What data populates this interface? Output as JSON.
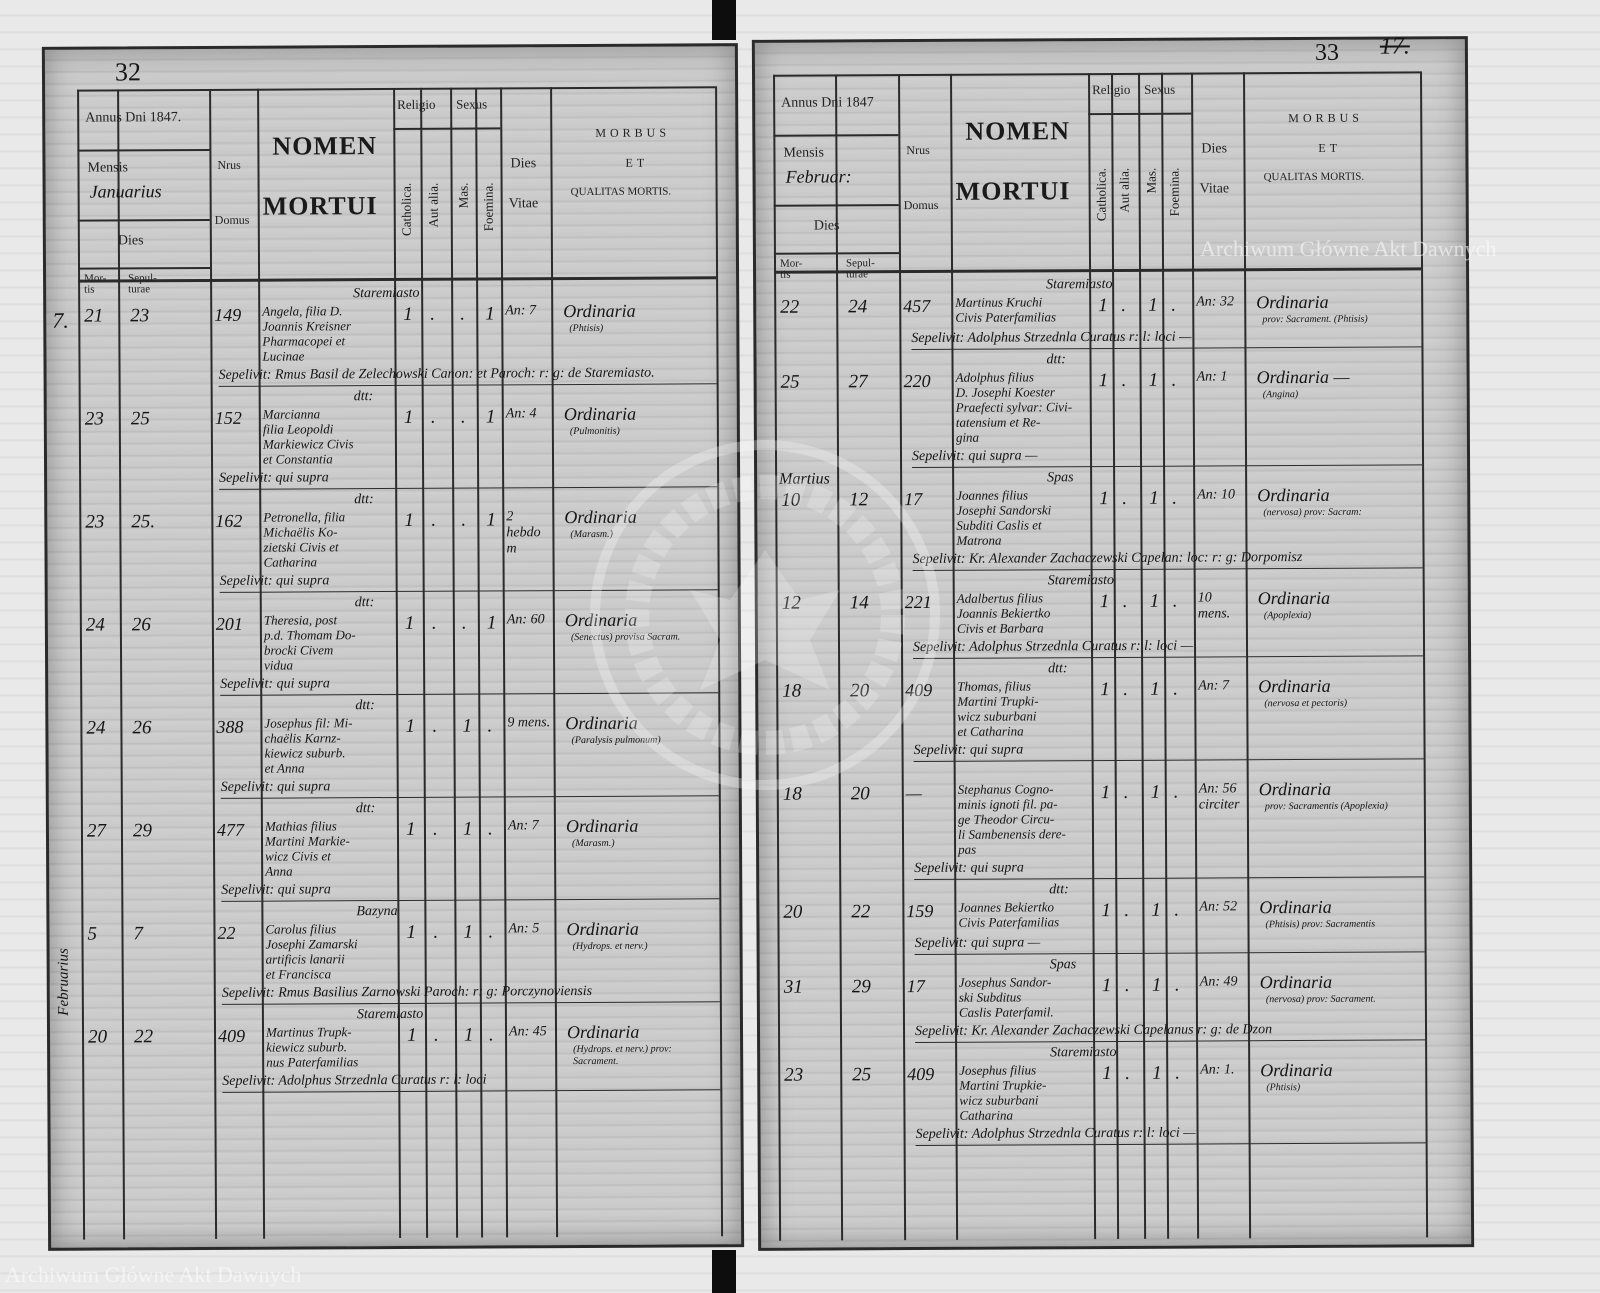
{
  "left_page": {
    "page_number": "32",
    "header": {
      "annus": "Annus Dni 1847.",
      "mensis_label": "Mensis",
      "mensis_value": "Januarius",
      "dies": "Dies",
      "mortis": "Mor-tis",
      "sepulturae": "Sepul-turae",
      "nrus": "Nrus",
      "domus": "Domus",
      "nomen": "NOMEN",
      "mortui": "MORTUI",
      "religio": "Religio",
      "catholica": "Catholica.",
      "aut_alia": "Aut alia.",
      "sexus": "Sexus",
      "mas": "Mas.",
      "foemina": "Foemina.",
      "dies_vitae_1": "Dies",
      "dies_vitae_2": "Vitae",
      "morbus_1": "MORBUS",
      "morbus_2": "ET",
      "morbus_3": "QUALITAS MORTIS."
    },
    "margin_notes": [
      "7.",
      "Februarius"
    ],
    "entries": [
      {
        "place": "Staremiasto",
        "mortis": "21",
        "sepultura": "23",
        "domus": "149",
        "name": [
          "Angela, filia D.",
          "Joannis Kreisner",
          "Pharmacopei et",
          "Lucinae"
        ],
        "cath": "1",
        "alia": ".",
        "mas": ".",
        "foem": "1",
        "vitae": "An: 7",
        "morbus": "Ordinaria",
        "note": "(Phtisis)",
        "sepelivit": "Sepelivit: Rmus Basil de Zelechowski Canon: et Paroch: r: g: de Staremiasto."
      },
      {
        "place": "dtt:",
        "mortis": "23",
        "sepultura": "25",
        "domus": "152",
        "name": [
          "Marcianna",
          "filia Leopoldi",
          "Markiewicz Civis",
          "et Constantia"
        ],
        "cath": "1",
        "alia": ".",
        "mas": ".",
        "foem": "1",
        "vitae": "An: 4",
        "morbus": "Ordinaria",
        "note": "(Pulmonitis)",
        "sepelivit": "Sepelivit: qui supra"
      },
      {
        "place": "dtt:",
        "mortis": "23",
        "sepultura": "25.",
        "domus": "162",
        "name": [
          "Petronella, filia",
          "Michaëlis Ko-",
          "zietski Civis et",
          "Catharina"
        ],
        "cath": "1",
        "alia": ".",
        "mas": ".",
        "foem": "1",
        "vitae": "2 hebdom",
        "morbus": "Ordinaria",
        "note": "(Marasm.)",
        "sepelivit": "Sepelivit: qui supra"
      },
      {
        "place": "dtt:",
        "mortis": "24",
        "sepultura": "26",
        "domus": "201",
        "name": [
          "Theresia, post",
          "p.d. Thomam Do-",
          "brocki Civem",
          "vidua"
        ],
        "cath": "1",
        "alia": ".",
        "mas": ".",
        "foem": "1",
        "vitae": "An: 60",
        "morbus": "Ordinaria",
        "note": "(Senectus) provisa Sacram.",
        "sepelivit": "Sepelivit: qui supra"
      },
      {
        "place": "dtt:",
        "mortis": "24",
        "sepultura": "26",
        "domus": "388",
        "name": [
          "Josephus fil: Mi-",
          "chaëlis Karnz-",
          "kiewicz suburb.",
          "et Anna"
        ],
        "cath": "1",
        "alia": ".",
        "mas": "1",
        "foem": ".",
        "vitae": "9 mens.",
        "morbus": "Ordinaria",
        "note": "(Paralysis pulmonum)",
        "sepelivit": "Sepelivit: qui supra"
      },
      {
        "place": "dtt:",
        "mortis": "27",
        "sepultura": "29",
        "domus": "477",
        "name": [
          "Mathias filius",
          "Martini Markie-",
          "wicz Civis et",
          "Anna"
        ],
        "cath": "1",
        "alia": ".",
        "mas": "1",
        "foem": ".",
        "vitae": "An: 7",
        "morbus": "Ordinaria",
        "note": "(Marasm.)",
        "sepelivit": "Sepelivit: qui supra"
      },
      {
        "place": "Bazyna",
        "mortis": "5",
        "sepultura": "7",
        "domus": "22",
        "name": [
          "Carolus filius",
          "Josephi Zamarski",
          "artificis lanarii",
          "et Francisca"
        ],
        "cath": "1",
        "alia": ".",
        "mas": "1",
        "foem": ".",
        "vitae": "An: 5",
        "morbus": "Ordinaria",
        "note": "(Hydrops. et nerv.)",
        "sepelivit": "Sepelivit: Rmus Basilius Zarnowski Paroch: r: g: Porczynoviensis"
      },
      {
        "place": "Staremiasto",
        "mortis": "20",
        "sepultura": "22",
        "domus": "409",
        "name": [
          "Martinus Trupk-",
          "kiewicz suburb.",
          "nus Paterfamilias"
        ],
        "cath": "1",
        "alia": ".",
        "mas": "1",
        "foem": ".",
        "vitae": "An: 45",
        "morbus": "Ordinaria",
        "note": "(Hydrops. et nerv.) prov: Sacrament.",
        "sepelivit": "Sepelivit: Adolphus Strzednla Curatus r: l: loci"
      }
    ]
  },
  "right_page": {
    "page_number": "33",
    "page_number_old": "17.",
    "header": {
      "annus": "Annus Dni 1847",
      "mensis_label": "Mensis",
      "mensis_value": "Februar:",
      "dies": "Dies",
      "mortis": "Mor-tis",
      "sepulturae": "Sepul-turae",
      "nrus": "Nrus",
      "domus": "Domus",
      "nomen": "NOMEN",
      "mortui": "MORTUI",
      "religio": "Religio",
      "catholica": "Catholica.",
      "aut_alia": "Aut alia.",
      "sexus": "Sexus",
      "mas": "Mas.",
      "foemina": "Foemina.",
      "dies_vitae_1": "Dies",
      "dies_vitae_2": "Vitae",
      "morbus_1": "MORBUS",
      "morbus_2": "ET",
      "morbus_3": "QUALITAS MORTIS."
    },
    "margin_notes": [
      "Martius"
    ],
    "entries": [
      {
        "place": "Staremiasto",
        "mortis": "22",
        "sepultura": "24",
        "domus": "457",
        "name": [
          "Martinus Kruchi",
          "Civis Paterfamilias"
        ],
        "cath": "1",
        "alia": ".",
        "mas": "1",
        "foem": ".",
        "vitae": "An: 32",
        "morbus": "Ordinaria",
        "note": "prov: Sacrament. (Phtisis)",
        "sepelivit": "Sepelivit: Adolphus Strzednla Curatus r: l: loci —"
      },
      {
        "place": "dtt:",
        "mortis": "25",
        "sepultura": "27",
        "domus": "220",
        "name": [
          "Adolphus filius",
          "D. Josephi Koester",
          "Praefecti sylvar: Civi-",
          "tatensium et Re-",
          "gina"
        ],
        "cath": "1",
        "alia": ".",
        "mas": "1",
        "foem": ".",
        "vitae": "An: 1",
        "morbus": "Ordinaria —",
        "note": "(Angina)",
        "sepelivit": "Sepelivit: qui supra —"
      },
      {
        "place": "Spas",
        "mortis": "10",
        "sepultura": "12",
        "domus": "17",
        "name": [
          "Joannes filius",
          "Josephi Sandorski",
          "Subditi Caslis et",
          "Matrona"
        ],
        "cath": "1",
        "alia": ".",
        "mas": "1",
        "foem": ".",
        "vitae": "An: 10",
        "morbus": "Ordinaria",
        "note": "(nervosa) prov: Sacram:",
        "sepelivit": "Sepelivit: Kr. Alexander Zachaczewski Capelan: loc: r: g: Dorpomisz"
      },
      {
        "place": "Staremiasto",
        "mortis": "12",
        "sepultura": "14",
        "domus": "221",
        "name": [
          "Adalbertus filius",
          "Joannis Bekiertko",
          "Civis et Barbara"
        ],
        "cath": "1",
        "alia": ".",
        "mas": "1",
        "foem": ".",
        "vitae": "10 mens.",
        "morbus": "Ordinaria",
        "note": "(Apoplexia)",
        "sepelivit": "Sepelivit: Adolphus Strzednla Curatus r: l: loci —"
      },
      {
        "place": "dtt:",
        "mortis": "18",
        "sepultura": "20",
        "domus": "409",
        "name": [
          "Thomas, filius",
          "Martini Trupki-",
          "wicz suburbani",
          "et Catharina"
        ],
        "cath": "1",
        "alia": ".",
        "mas": "1",
        "foem": ".",
        "vitae": "An: 7",
        "morbus": "Ordinaria",
        "note": "(nervosa et pectoris)",
        "sepelivit": "Sepelivit: qui supra"
      },
      {
        "place": "",
        "mortis": "18",
        "sepultura": "20",
        "domus": "—",
        "name": [
          "Stephanus Cogno-",
          "minis ignoti fil. pa-",
          "ge Theodor Circu-",
          "li Sambenensis dere-",
          "pas"
        ],
        "cath": "1",
        "alia": ".",
        "mas": "1",
        "foem": ".",
        "vitae": "An: 56 circiter",
        "morbus": "Ordinaria",
        "note": "prov: Sacramentis (Apoplexia)",
        "sepelivit": "Sepelivit: qui supra"
      },
      {
        "place": "dtt:",
        "mortis": "20",
        "sepultura": "22",
        "domus": "159",
        "name": [
          "Joannes Bekiertko",
          "Civis Paterfamilias"
        ],
        "cath": "1",
        "alia": ".",
        "mas": "1",
        "foem": ".",
        "vitae": "An: 52",
        "morbus": "Ordinaria",
        "note": "(Phtisis) prov: Sacramentis",
        "sepelivit": "Sepelivit: qui supra —"
      },
      {
        "place": "Spas",
        "mortis": "31",
        "sepultura": "29",
        "domus": "17",
        "name": [
          "Josephus Sandor-",
          "ski Subditus",
          "Caslis Paterfamil."
        ],
        "cath": "1",
        "alia": ".",
        "mas": "1",
        "foem": ".",
        "vitae": "An: 49",
        "morbus": "Ordinaria",
        "note": "(nervosa) prov: Sacrament.",
        "sepelivit": "Sepelivit: Kr. Alexander Zachaczewski Capelanus r: g: de Dzon"
      },
      {
        "place": "Staremiasto",
        "mortis": "23",
        "sepultura": "25",
        "domus": "409",
        "name": [
          "Josephus filius",
          "Martini Trupkie-",
          "wicz suburbani",
          "Catharina"
        ],
        "cath": "1",
        "alia": ".",
        "mas": "1",
        "foem": ".",
        "vitae": "An: 1.",
        "morbus": "Ordinaria",
        "note": "(Phtisis)",
        "sepelivit": "Sepelivit: Adolphus Strzednla Curatus r: l: loci —"
      }
    ]
  },
  "watermarks": {
    "text_top_right": "Archiwum Główne Akt Dawnych",
    "text_left": "Archiwum Główne Akt Dawnych",
    "seal_text": "ARCHIWUM GŁÓWNE AKT DAWNYCH"
  },
  "colors": {
    "paper": "#c9c9c9",
    "ink": "#151515",
    "background": "#e9e9e9",
    "spine": "#0d0d0d"
  }
}
